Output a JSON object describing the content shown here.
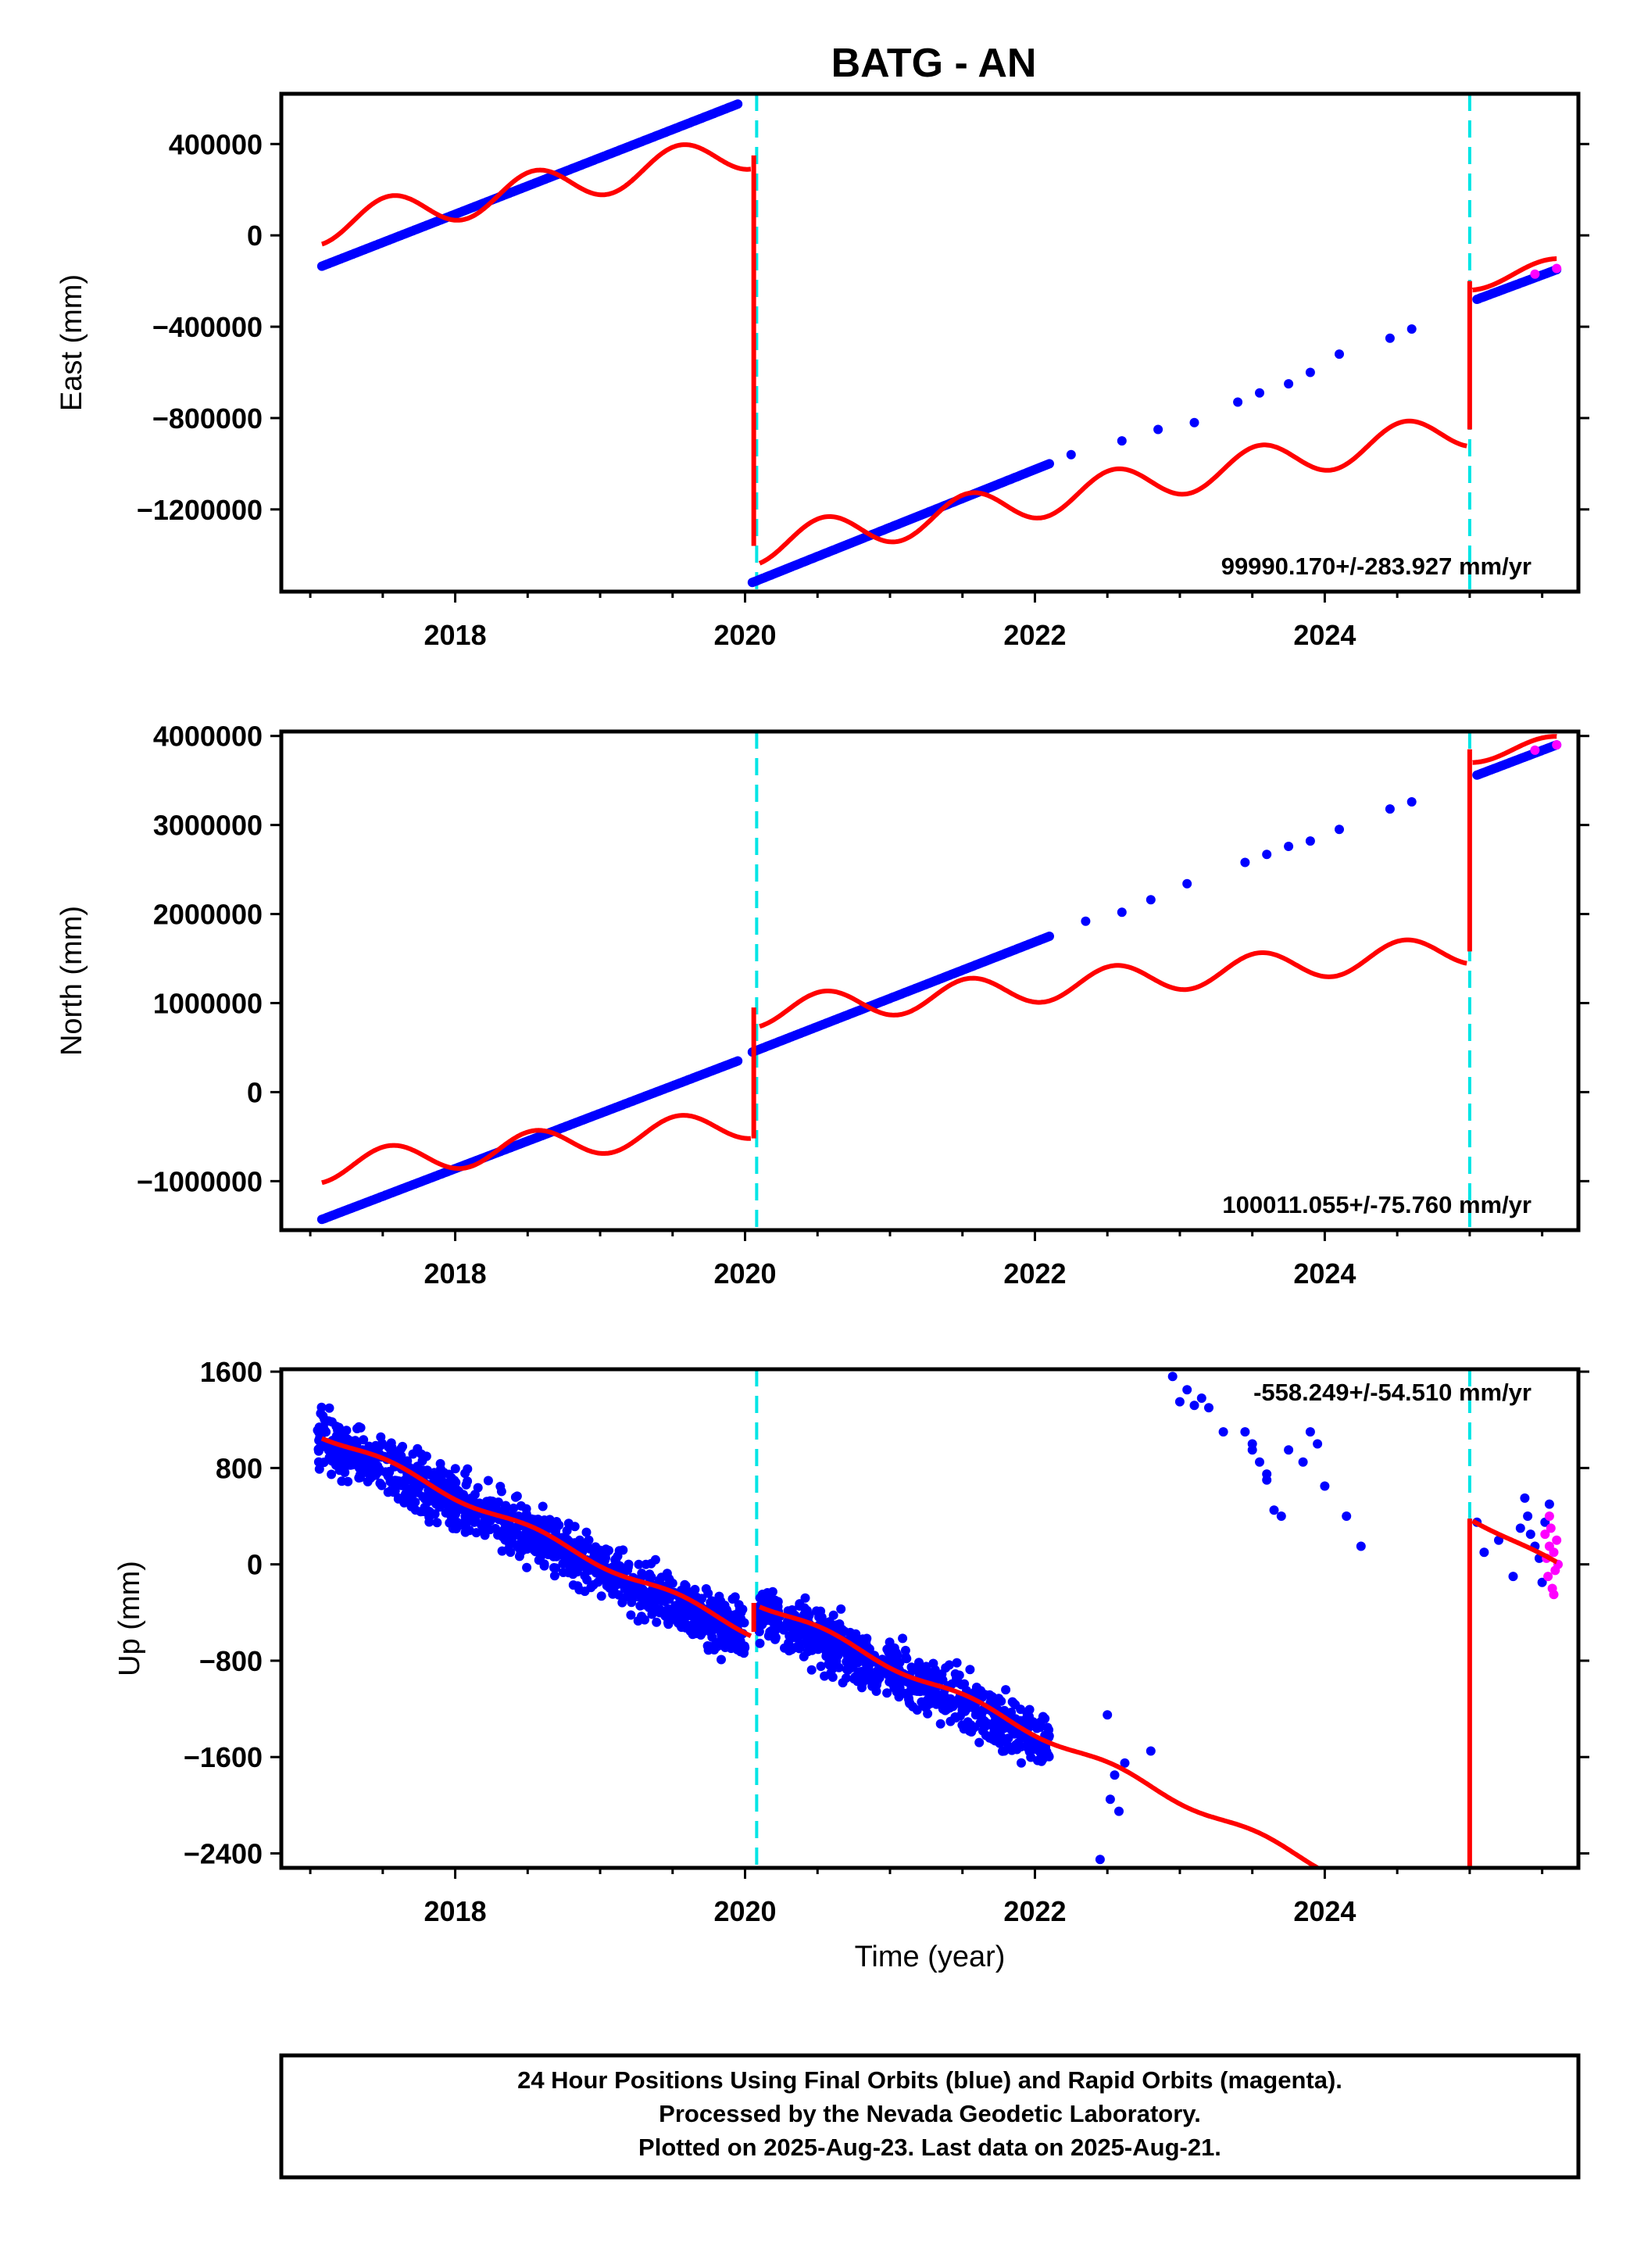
{
  "title": "BATG - AN",
  "colors": {
    "final": "#0000ff",
    "rapid": "#ff00ff",
    "model": "#ff0000",
    "breaks": "#00e5e5",
    "frame": "#000000"
  },
  "chart_data": [
    {
      "type": "scatter",
      "ylabel": "East (mm)",
      "xlabel": "",
      "xlim": [
        2016.8,
        2025.75
      ],
      "ylim": [
        -1560000,
        620000
      ],
      "x_ticks": [
        2018,
        2020,
        2022,
        2024
      ],
      "y_ticks": [
        400000,
        0,
        -400000,
        -800000,
        -1200000
      ],
      "y_tick_labels": [
        "400000",
        "0",
        "−400000",
        "−800000",
        "−1200000"
      ],
      "rate": "99990.170+/-283.927 mm/yr",
      "rate_position": "bottom-right",
      "breaks": [
        2020.08,
        2025.0
      ],
      "final_orbits": {
        "name": "Final Orbits",
        "segments": [
          {
            "x": [
              2017.08,
              2019.95
            ],
            "y": [
              -135000,
              575000
            ],
            "dense": true
          },
          {
            "x": [
              2020.05,
              2022.1
            ],
            "y": [
              -1520000,
              -1000000
            ],
            "dense": true
          },
          {
            "x": [
              2022.25,
              2022.6,
              2022.85,
              2023.1,
              2023.4,
              2023.55,
              2023.75,
              2023.9,
              2024.1,
              2024.45,
              2024.6
            ],
            "y": [
              -960000,
              -900000,
              -850000,
              -820000,
              -730000,
              -690000,
              -650000,
              -600000,
              -520000,
              -450000,
              -410000
            ],
            "dense": false
          },
          {
            "x": [
              2025.05,
              2025.6
            ],
            "y": [
              -280000,
              -150000
            ],
            "dense": true
          }
        ]
      },
      "rapid_orbits": {
        "name": "Rapid Orbits",
        "x": [
          2025.45,
          2025.6
        ],
        "y": [
          -170000,
          -145000
        ]
      },
      "model": {
        "segments": [
          {
            "trend": [
              [
                2017.08,
                40000
              ],
              [
                2020.04,
                370000
              ]
            ],
            "amplitude": 80000
          },
          {
            "trend": [
              [
                2020.1,
                -1360000
              ],
              [
                2024.98,
                -850000
              ]
            ],
            "amplitude": 80000
          },
          {
            "trend": [
              [
                2025.02,
                -200000
              ],
              [
                2025.6,
                -140000
              ]
            ],
            "amplitude": 40000
          }
        ],
        "jumps": [
          [
            2020.06,
            350000,
            -1360000
          ],
          [
            2025.0,
            -850000,
            -200000
          ]
        ]
      }
    },
    {
      "type": "scatter",
      "ylabel": "North (mm)",
      "xlabel": "",
      "xlim": [
        2016.8,
        2025.75
      ],
      "ylim": [
        -1550000,
        4050000
      ],
      "x_ticks": [
        2018,
        2020,
        2022,
        2024
      ],
      "y_ticks": [
        4000000,
        3000000,
        2000000,
        1000000,
        0,
        -1000000
      ],
      "y_tick_labels": [
        "4000000",
        "3000000",
        "2000000",
        "1000000",
        "0",
        "−1000000"
      ],
      "rate": "100011.055+/-75.760 mm/yr",
      "rate_position": "bottom-right",
      "breaks": [
        2020.08,
        2025.0
      ],
      "final_orbits": {
        "name": "Final Orbits",
        "segments": [
          {
            "x": [
              2017.08,
              2019.95
            ],
            "y": [
              -1430000,
              350000
            ],
            "dense": true
          },
          {
            "x": [
              2020.05,
              2022.1
            ],
            "y": [
              450000,
              1750000
            ],
            "dense": true
          },
          {
            "x": [
              2022.35,
              2022.6,
              2022.8,
              2023.05,
              2023.45,
              2023.6,
              2023.75,
              2023.9,
              2024.1,
              2024.45,
              2024.6
            ],
            "y": [
              1920000,
              2020000,
              2160000,
              2340000,
              2580000,
              2670000,
              2760000,
              2820000,
              2950000,
              3180000,
              3260000
            ],
            "dense": false
          },
          {
            "x": [
              2025.05,
              2025.6
            ],
            "y": [
              3560000,
              3900000
            ],
            "dense": true
          }
        ]
      },
      "rapid_orbits": {
        "name": "Rapid Orbits",
        "x": [
          2025.45,
          2025.6
        ],
        "y": [
          3840000,
          3900000
        ]
      },
      "model": {
        "segments": [
          {
            "trend": [
              [
                2017.08,
                -850000
              ],
              [
                2020.04,
                -350000
              ]
            ],
            "amplitude": 170000
          },
          {
            "trend": [
              [
                2020.1,
                900000
              ],
              [
                2024.98,
                1600000
              ]
            ],
            "amplitude": 170000
          },
          {
            "trend": [
              [
                2025.02,
                3800000
              ],
              [
                2025.6,
                3900000
              ]
            ],
            "amplitude": 100000
          }
        ],
        "jumps": [
          [
            2020.06,
            -520000,
            950000
          ],
          [
            2025.0,
            1580000,
            3850000
          ]
        ]
      }
    },
    {
      "type": "scatter",
      "ylabel": "Up (mm)",
      "xlabel": "Time (year)",
      "xlim": [
        2016.8,
        2025.75
      ],
      "ylim": [
        -2520,
        1620
      ],
      "x_ticks": [
        2018,
        2020,
        2022,
        2024
      ],
      "y_ticks": [
        1600,
        800,
        0,
        -800,
        -1600,
        -2400
      ],
      "y_tick_labels": [
        "1600",
        "800",
        "0",
        "−800",
        "−1600",
        "−2400"
      ],
      "rate": "-558.249+/-54.510 mm/yr",
      "rate_position": "top-right",
      "breaks": [
        2020.08,
        2025.0
      ],
      "final_orbits": {
        "name": "Final Orbits",
        "scatter_segments": [
          {
            "x": [
              2017.05,
              2020.0
            ],
            "y": [
              1050,
              -580
            ],
            "noise": 170
          },
          {
            "x": [
              2020.08,
              2022.1
            ],
            "y": [
              -380,
              -1480
            ],
            "noise": 160
          }
        ],
        "sparse": {
          "x": [
            2022.45,
            2022.5,
            2022.52,
            2022.55,
            2022.58,
            2022.62,
            2022.8,
            2022.95,
            2023.0,
            2023.05,
            2023.1,
            2023.15,
            2023.2,
            2023.3,
            2023.45,
            2023.5,
            2023.55,
            2023.6,
            2023.65,
            2023.7,
            2023.5,
            2023.6,
            2023.9,
            2023.95,
            2024.0,
            2023.75,
            2023.85,
            2024.15,
            2024.25,
            2025.05,
            2025.1,
            2025.2,
            2025.3,
            2025.35,
            2025.4,
            2025.45,
            2025.5,
            2025.55,
            2025.38,
            2025.42,
            2025.48,
            2025.52
          ],
          "y": [
            -2450,
            -1250,
            -1950,
            -1750,
            -2050,
            -1650,
            -1550,
            1560,
            1350,
            1450,
            1320,
            1380,
            1300,
            1100,
            1100,
            1000,
            850,
            750,
            450,
            400,
            950,
            700,
            1100,
            1000,
            650,
            950,
            850,
            400,
            150,
            350,
            100,
            200,
            -100,
            300,
            400,
            150,
            -150,
            500,
            550,
            250,
            50,
            350
          ]
        }
      },
      "rapid_orbits": {
        "name": "Rapid Orbits",
        "x": [
          2025.52,
          2025.53,
          2025.54,
          2025.55,
          2025.56,
          2025.57,
          2025.58,
          2025.59,
          2025.6,
          2025.61,
          2025.55,
          2025.58
        ],
        "y": [
          250,
          50,
          -100,
          150,
          300,
          -200,
          100,
          -50,
          200,
          0,
          400,
          -250
        ]
      },
      "model": {
        "segments": [
          {
            "trend": [
              [
                2017.08,
                1080
              ],
              [
                2020.04,
                -560
              ]
            ],
            "amplitude": 35
          },
          {
            "trend": [
              [
                2020.1,
                -320
              ],
              [
                2024.0,
                -2520
              ]
            ],
            "amplitude": 35
          },
          {
            "trend": [
              [
                2025.02,
                380
              ],
              [
                2025.6,
                0
              ]
            ],
            "amplitude": 20
          }
        ],
        "jumps": [
          [
            2020.06,
            -560,
            -320
          ],
          [
            2025.0,
            -2520,
            380
          ]
        ]
      }
    }
  ],
  "footer": {
    "line1": "24 Hour Positions Using Final Orbits (blue) and Rapid Orbits (magenta).",
    "line2": "Processed by the Nevada Geodetic Laboratory.",
    "line3": "Plotted on 2025-Aug-23. Last data on 2025-Aug-21."
  }
}
